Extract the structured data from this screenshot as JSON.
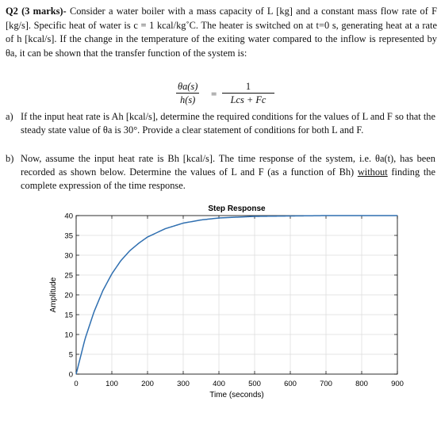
{
  "question": {
    "head": "Q2 (3 marks)-",
    "body": " Consider a water boiler with a mass capacity of L [kg] and a constant mass flow rate of F [kg/s]. Specific heat of water is c = 1  kcal/kg˚C. The heater is switched on at t=0 s, generating heat at a rate of h [kcal/s]. If the change in the temperature of the exiting water compared to the inflow is represented by θa, it can be shown that the transfer function of the system is:"
  },
  "equation": {
    "lhs_num": "θa(s)",
    "lhs_den": "h(s)",
    "equals": "=",
    "rhs_num": "1",
    "rhs_den": "Lcs + Fc"
  },
  "part_a": {
    "label": "a)",
    "text": "If the input heat rate is Ah [kcal/s], determine the required conditions for the values of L and F so that the steady state value of θa is 30°. Provide a clear statement of conditions for both L and F."
  },
  "part_b": {
    "label": "b)",
    "text": "Now, assume the input heat rate is Bh [kcal/s]. The time response of the system, i.e. θa(t), has been recorded as shown below. Determine the values of L and F (as a function of Bh) ",
    "underlined": "without",
    "text_end": " finding the complete expression of the time response."
  },
  "chart_data": {
    "type": "line",
    "title": "Step Response",
    "xlabel": "Time (seconds)",
    "ylabel": "Amplitude",
    "xlim": [
      0,
      900
    ],
    "ylim": [
      0,
      40
    ],
    "xticks": [
      "0",
      "100",
      "200",
      "300",
      "400",
      "500",
      "600",
      "700",
      "800",
      "900"
    ],
    "yticks": [
      "0",
      "5",
      "10",
      "15",
      "20",
      "25",
      "30",
      "35",
      "40"
    ],
    "grid": true,
    "series": [
      {
        "color": "#2f6fb0",
        "x": [
          0,
          25,
          50,
          75,
          100,
          125,
          150,
          175,
          200,
          250,
          300,
          350,
          400,
          450,
          500,
          600,
          700,
          800,
          900
        ],
        "y": [
          0,
          8.9,
          15.7,
          21.1,
          25.3,
          28.6,
          31.1,
          33.0,
          34.6,
          36.7,
          38.1,
          38.9,
          39.4,
          39.6,
          39.8,
          39.9,
          40.0,
          40.0,
          40.0
        ]
      }
    ]
  }
}
